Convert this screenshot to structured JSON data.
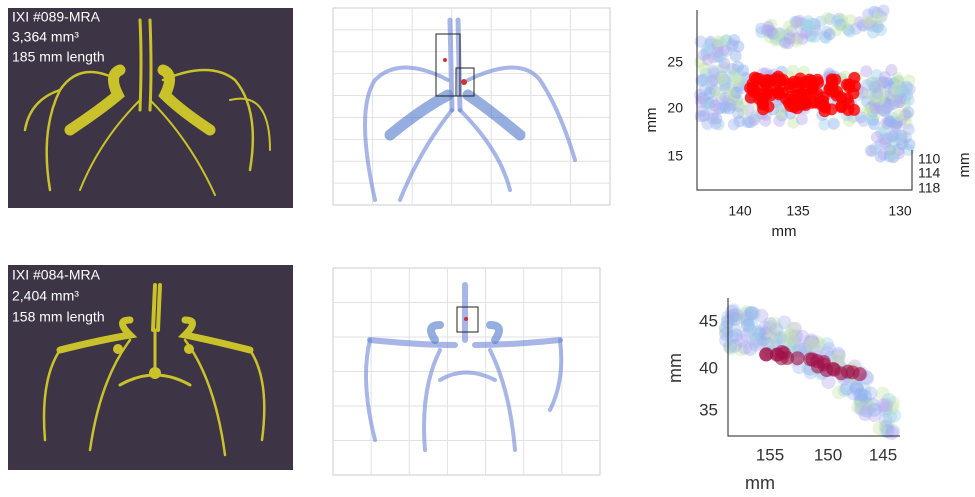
{
  "panels": [
    {
      "scan": {
        "id": "IXI #089-MRA",
        "volume": "3,364 mm³",
        "length": "185 mm length"
      },
      "plot": {
        "y_label": "mm",
        "y_ticks": [
          25,
          20,
          15
        ],
        "x_label": "mm",
        "x_ticks": [
          140,
          135,
          130
        ],
        "z_label": "mm",
        "z_ticks": [
          110,
          114,
          118
        ]
      }
    },
    {
      "scan": {
        "id": "IXI #084-MRA",
        "volume": "2,404 mm³",
        "length": "158 mm length"
      },
      "plot": {
        "y_label": "mm",
        "y_ticks": [
          45,
          40,
          35
        ],
        "x_label": "mm",
        "x_ticks": [
          155,
          150,
          145
        ]
      }
    }
  ]
}
